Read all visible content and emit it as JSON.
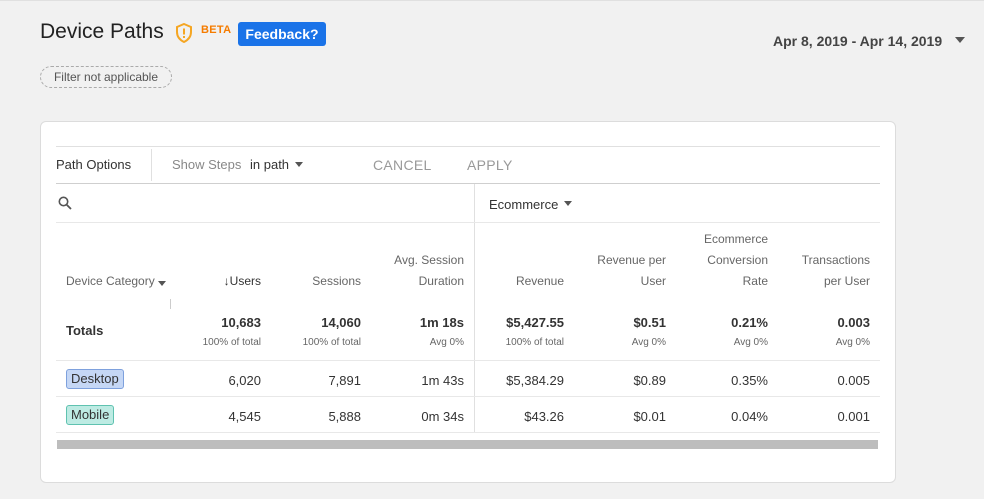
{
  "header": {
    "title": "Device Paths",
    "beta": "BETA",
    "feedback": "Feedback?",
    "date_range": "Apr 8, 2019 - Apr 14, 2019",
    "filter_chip": "Filter not applicable"
  },
  "options": {
    "path_options": "Path Options",
    "show_steps": "Show Steps",
    "in_path": "in path",
    "cancel": "CANCEL",
    "apply": "APPLY"
  },
  "table": {
    "segment": "Ecommerce",
    "columns": {
      "device_category": "Device Category",
      "users": "↓Users",
      "sessions": "Sessions",
      "avg_session_l1": "Avg. Session",
      "avg_session_l2": "Duration",
      "revenue": "Revenue",
      "rev_per_user_l1": "Revenue per",
      "rev_per_user_l2": "User",
      "conv_l1": "Ecommerce",
      "conv_l2": "Conversion",
      "conv_l3": "Rate",
      "tpu_l1": "Transactions",
      "tpu_l2": "per User"
    },
    "totals": {
      "label": "Totals",
      "users": "10,683",
      "users_sub": "100% of total",
      "sessions": "14,060",
      "sessions_sub": "100% of total",
      "duration": "1m 18s",
      "duration_sub": "Avg 0%",
      "revenue": "$5,427.55",
      "revenue_sub": "100% of total",
      "rev_per_user": "$0.51",
      "rev_per_user_sub": "Avg 0%",
      "conv_rate": "0.21%",
      "conv_rate_sub": "Avg 0%",
      "tpu": "0.003",
      "tpu_sub": "Avg 0%"
    },
    "rows": [
      {
        "device": "Desktop",
        "users": "6,020",
        "sessions": "7,891",
        "duration": "1m 43s",
        "revenue": "$5,384.29",
        "rev_per_user": "$0.89",
        "conv_rate": "0.35%",
        "tpu": "0.005"
      },
      {
        "device": "Mobile",
        "users": "4,545",
        "sessions": "5,888",
        "duration": "0m 34s",
        "revenue": "$43.26",
        "rev_per_user": "$0.01",
        "conv_rate": "0.04%",
        "tpu": "0.001"
      }
    ]
  },
  "colors": {
    "accent": "#1a73e8",
    "beta": "#f57c00",
    "desktop_chip": "#c5d7f5",
    "mobile_chip": "#bdebe3"
  }
}
